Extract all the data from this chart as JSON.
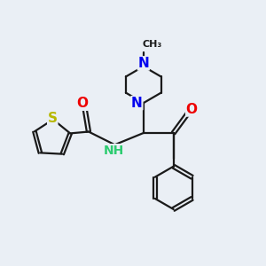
{
  "background_color": "#eaeff5",
  "bond_color": "#1a1a1a",
  "bond_width": 1.6,
  "atom_colors": {
    "S": "#b8b800",
    "N": "#0000ee",
    "O": "#ee0000",
    "NH": "#2ecc71",
    "C": "#1a1a1a"
  },
  "font_size": 10
}
